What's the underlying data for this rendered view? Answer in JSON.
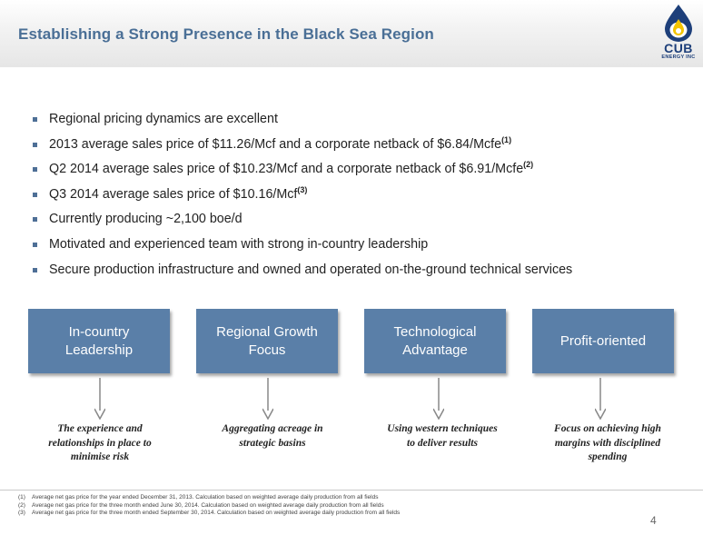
{
  "header": {
    "title": "Establishing a Strong Presence in the Black Sea Region",
    "logo": {
      "name": "CUB",
      "subtitle": "ENERGY INC",
      "icon": "flame-drop-icon",
      "color": "#1d3f7a",
      "accent": "#f3c400"
    }
  },
  "bullets": [
    {
      "text": "Regional pricing dynamics are excellent",
      "note": ""
    },
    {
      "text": "2013 average sales price of $11.26/Mcf and a corporate netback of $6.84/Mcfe",
      "note": "(1)"
    },
    {
      "text": "Q2 2014 average sales price of $10.23/Mcf and a corporate netback of $6.91/Mcfe",
      "note": "(2)"
    },
    {
      "text": "Q3 2014 average sales price of $10.16/Mcf",
      "note": "(3)"
    },
    {
      "text": "Currently producing ~2,100 boe/d",
      "note": ""
    },
    {
      "text": "Motivated and experienced team with strong in-country leadership",
      "note": ""
    },
    {
      "text": "Secure production infrastructure and owned and operated on-the-ground technical services",
      "note": ""
    }
  ],
  "pillars": [
    {
      "label": "In-country Leadership",
      "caption": "The experience and relationships in place to minimise risk"
    },
    {
      "label": "Regional Growth Focus",
      "caption": "Aggregating acreage in strategic basins"
    },
    {
      "label": "Technological Advantage",
      "caption": "Using western techniques to deliver results"
    },
    {
      "label": "Profit-oriented",
      "caption": "Focus on achieving high margins with disciplined spending"
    }
  ],
  "footnotes": [
    {
      "num": "(1)",
      "text": "Average net gas price for the year ended December 31, 2013. Calculation based on weighted average daily production from all fields"
    },
    {
      "num": "(2)",
      "text": "Average net gas price for the three month ended June 30, 2014. Calculation based on weighted average daily production from all fields"
    },
    {
      "num": "(3)",
      "text": "Average net gas price for the three month ended September 30, 2014. Calculation based on weighted average daily production from all fields"
    }
  ],
  "page_number": "4",
  "colors": {
    "title": "#4a6f96",
    "box": "#5a7fa8",
    "bullet": "#4e6f96"
  }
}
